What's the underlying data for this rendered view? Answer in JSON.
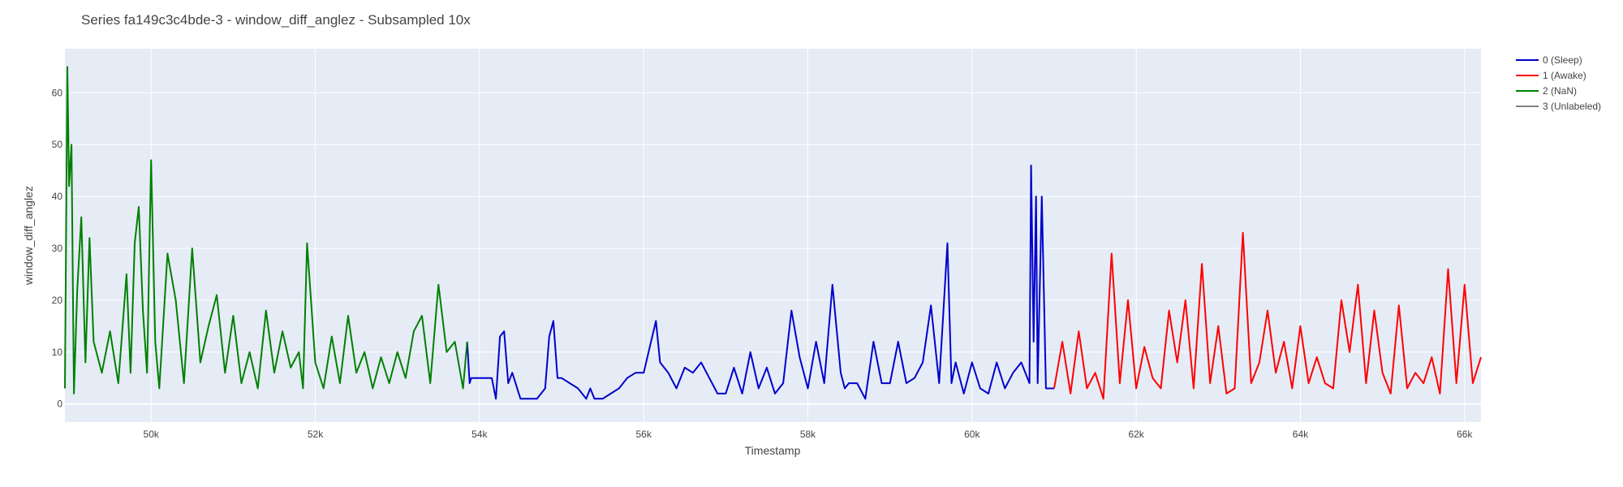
{
  "chart_data": {
    "type": "line",
    "title": "Series fa149c3c4bde-3 - window_diff_anglez - Subsampled 10x",
    "xlabel": "Timestamp",
    "ylabel": "window_diff_anglez",
    "xlim": [
      48950,
      66200
    ],
    "ylim": [
      -3.5,
      68.5
    ],
    "x_ticks": [
      50000,
      52000,
      54000,
      56000,
      58000,
      60000,
      62000,
      64000,
      66000
    ],
    "x_tick_labels": [
      "50k",
      "52k",
      "54k",
      "56k",
      "58k",
      "60k",
      "62k",
      "64k",
      "66k"
    ],
    "y_ticks": [
      0,
      10,
      20,
      30,
      40,
      50,
      60
    ],
    "y_tick_labels": [
      "0",
      "10",
      "20",
      "30",
      "40",
      "50",
      "60"
    ],
    "grid": true,
    "legend_position": "right",
    "plot_background": "#e5ecf6",
    "series": [
      {
        "name": "0 (Sleep)",
        "color": "#0000cc",
        "x": [
          53850,
          53880,
          53900,
          54000,
          54100,
          54150,
          54200,
          54250,
          54300,
          54350,
          54400,
          54500,
          54600,
          54700,
          54800,
          54850,
          54900,
          54950,
          55000,
          55100,
          55200,
          55300,
          55350,
          55400,
          55500,
          55600,
          55700,
          55800,
          55900,
          56000,
          56150,
          56200,
          56300,
          56400,
          56500,
          56600,
          56700,
          56800,
          56900,
          57000,
          57100,
          57200,
          57300,
          57400,
          57500,
          57600,
          57700,
          57800,
          57900,
          58000,
          58100,
          58200,
          58300,
          58400,
          58450,
          58500,
          58600,
          58700,
          58800,
          58900,
          59000,
          59100,
          59200,
          59300,
          59400,
          59500,
          59600,
          59700,
          59750,
          59800,
          59900,
          60000,
          60100,
          60200,
          60300,
          60400,
          60500,
          60600,
          60700,
          60720,
          60750,
          60780,
          60800,
          60850,
          60900,
          61000
        ],
        "values": [
          12,
          4,
          5,
          5,
          5,
          5,
          1,
          13,
          14,
          4,
          6,
          1,
          1,
          1,
          3,
          13,
          16,
          5,
          5,
          4,
          3,
          1,
          3,
          1,
          1,
          2,
          3,
          5,
          6,
          6,
          16,
          8,
          6,
          3,
          7,
          6,
          8,
          5,
          2,
          2,
          7,
          2,
          10,
          3,
          7,
          2,
          4,
          18,
          9,
          3,
          12,
          4,
          23,
          6,
          3,
          4,
          4,
          1,
          12,
          4,
          4,
          12,
          4,
          5,
          8,
          19,
          4,
          31,
          4,
          8,
          2,
          8,
          3,
          2,
          8,
          3,
          6,
          8,
          4,
          46,
          12,
          40,
          4,
          40,
          3,
          3
        ]
      },
      {
        "name": "1 (Awake)",
        "color": "#ff0000",
        "x": [
          61000,
          61100,
          61200,
          61300,
          61400,
          61500,
          61600,
          61700,
          61800,
          61900,
          62000,
          62100,
          62200,
          62300,
          62400,
          62500,
          62600,
          62700,
          62800,
          62900,
          63000,
          63100,
          63200,
          63300,
          63400,
          63500,
          63600,
          63700,
          63800,
          63900,
          64000,
          64100,
          64200,
          64300,
          64400,
          64500,
          64600,
          64700,
          64800,
          64900,
          65000,
          65100,
          65200,
          65300,
          65400,
          65500,
          65600,
          65700,
          65800,
          65900,
          66000,
          66100,
          66200
        ],
        "values": [
          3,
          12,
          2,
          14,
          3,
          6,
          1,
          29,
          4,
          20,
          3,
          11,
          5,
          3,
          18,
          8,
          20,
          3,
          27,
          4,
          15,
          2,
          3,
          33,
          4,
          8,
          18,
          6,
          12,
          3,
          15,
          4,
          9,
          4,
          3,
          20,
          10,
          23,
          4,
          18,
          6,
          2,
          19,
          3,
          6,
          4,
          9,
          2,
          26,
          4,
          23,
          4,
          9
        ]
      },
      {
        "name": "2 (NaN)",
        "color": "#008000",
        "x": [
          48950,
          48980,
          49000,
          49030,
          49060,
          49100,
          49150,
          49200,
          49250,
          49300,
          49400,
          49500,
          49600,
          49700,
          49750,
          49800,
          49850,
          49900,
          49950,
          50000,
          50050,
          50100,
          50200,
          50300,
          50400,
          50500,
          50600,
          50700,
          50800,
          50900,
          51000,
          51100,
          51200,
          51300,
          51400,
          51500,
          51600,
          51700,
          51800,
          51850,
          51900,
          52000,
          52100,
          52200,
          52300,
          52400,
          52500,
          52600,
          52700,
          52800,
          52900,
          53000,
          53100,
          53200,
          53300,
          53400,
          53500,
          53600,
          53700,
          53800,
          53850
        ],
        "values": [
          3,
          65,
          42,
          50,
          2,
          22,
          36,
          8,
          32,
          12,
          6,
          14,
          4,
          25,
          6,
          31,
          38,
          18,
          6,
          47,
          12,
          3,
          29,
          20,
          4,
          30,
          8,
          15,
          21,
          6,
          17,
          4,
          10,
          3,
          18,
          6,
          14,
          7,
          10,
          3,
          31,
          8,
          3,
          13,
          4,
          17,
          6,
          10,
          3,
          9,
          4,
          10,
          5,
          14,
          17,
          4,
          23,
          10,
          12,
          3,
          12
        ]
      },
      {
        "name": "3 (Unlabeled)",
        "color": "#808080",
        "x": [],
        "values": []
      }
    ]
  }
}
